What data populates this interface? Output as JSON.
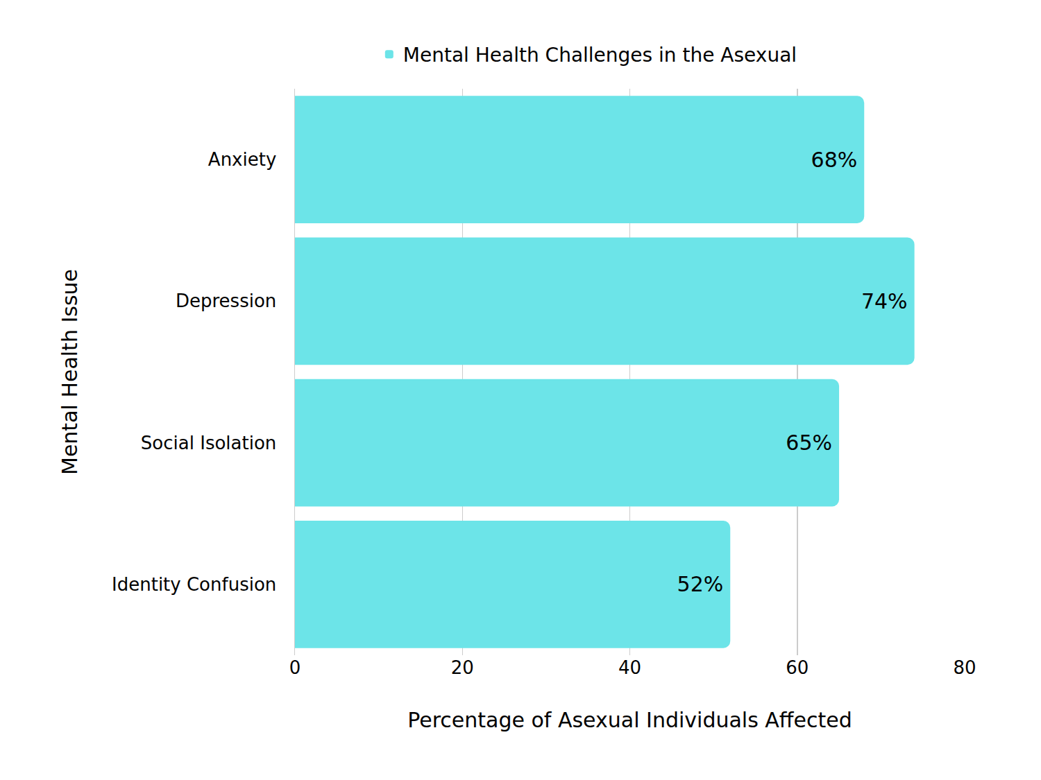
{
  "chart_data": {
    "type": "bar",
    "orientation": "horizontal",
    "categories": [
      "Anxiety",
      "Depression",
      "Social Isolation",
      "Identity Confusion"
    ],
    "series": [
      {
        "name": "Mental Health Challenges in the Asexual",
        "color": "#6ce4e8",
        "values": [
          68,
          74,
          65,
          52
        ],
        "value_labels": [
          "68%",
          "74%",
          "65%",
          "52%"
        ]
      }
    ],
    "xlabel": "Percentage of Asexual Individuals Affected",
    "ylabel": "Mental Health Issue",
    "xlim": [
      0,
      80
    ],
    "xticks": [
      0,
      20,
      40,
      60,
      80
    ],
    "grid": true,
    "legend": "top",
    "data_labels": true
  }
}
